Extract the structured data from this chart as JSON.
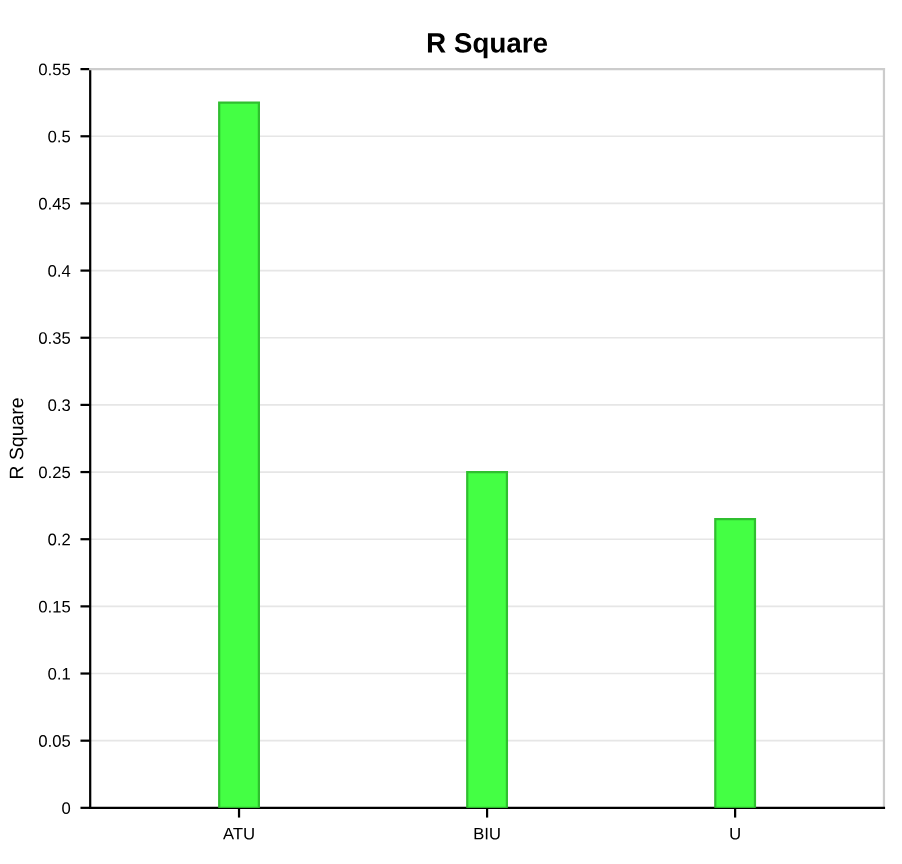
{
  "chart_data": {
    "type": "bar",
    "title": "R Square",
    "ylabel": "R Square",
    "categories": [
      "ATU",
      "BIU",
      "U"
    ],
    "values": [
      0.525,
      0.25,
      0.215
    ],
    "color": "#44ff44",
    "ylim": [
      0,
      0.55
    ],
    "yticks": [
      0,
      0.05,
      0.1,
      0.15,
      0.2,
      0.25,
      0.3,
      0.35,
      0.4,
      0.45,
      0.5,
      0.55
    ],
    "grid": "y"
  }
}
